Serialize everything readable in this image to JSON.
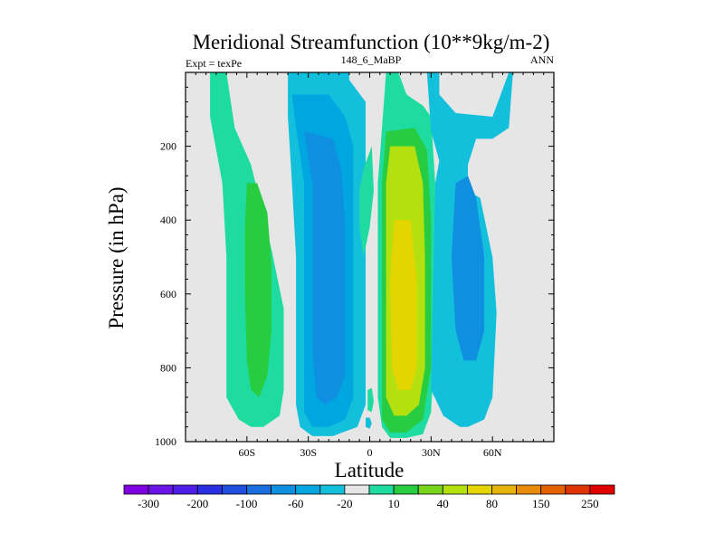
{
  "chart_data": {
    "type": "heatmap",
    "title": "Meridional Streamfunction (10**9kg/m-2)",
    "subtitle_left": "Expt = texPe",
    "subtitle_center": "148_6_MaBP",
    "subtitle_right": "ANN",
    "xlabel": "Latitude",
    "ylabel": "Pressure (in hPa)",
    "xlim": [
      -90,
      90
    ],
    "ylim": [
      0,
      1000
    ],
    "y_inverted": true,
    "x_ticks": [
      {
        "value": -60,
        "label": "60S"
      },
      {
        "value": -30,
        "label": "30S"
      },
      {
        "value": 0,
        "label": "0"
      },
      {
        "value": 30,
        "label": "30N"
      },
      {
        "value": 60,
        "label": "60N"
      }
    ],
    "y_ticks": [
      {
        "value": 200,
        "label": "200"
      },
      {
        "value": 400,
        "label": "400"
      },
      {
        "value": 600,
        "label": "600"
      },
      {
        "value": 800,
        "label": "800"
      },
      {
        "value": 1000,
        "label": "1000"
      }
    ],
    "colorbar": {
      "colors": [
        "#7f00e0",
        "#6a14e8",
        "#4b1ee6",
        "#2a2ee2",
        "#1f4fe0",
        "#1a6fe0",
        "#0f8fe0",
        "#00a6e0",
        "#12c0dc",
        "#e6e6e6",
        "#1edca0",
        "#28cc40",
        "#78d41c",
        "#b4e010",
        "#e4d400",
        "#e8b40c",
        "#e88c08",
        "#e46000",
        "#e03400",
        "#e00000"
      ],
      "labels": [
        {
          "boundary": 1,
          "text": "-300"
        },
        {
          "boundary": 3,
          "text": "-200"
        },
        {
          "boundary": 5,
          "text": "-100"
        },
        {
          "boundary": 7,
          "text": "-60"
        },
        {
          "boundary": 9,
          "text": "-20"
        },
        {
          "boundary": 11,
          "text": "10"
        },
        {
          "boundary": 13,
          "text": "40"
        },
        {
          "boundary": 15,
          "text": "80"
        },
        {
          "boundary": 17,
          "text": "150"
        },
        {
          "boundary": 19,
          "text": "250"
        }
      ]
    },
    "contour_regions": [
      {
        "name": "nh-outer-teal",
        "color": "#1edca0",
        "points": [
          [
            -78,
            0
          ],
          [
            -70,
            0
          ],
          [
            -66,
            150
          ],
          [
            -58,
            250
          ],
          [
            -48,
            480
          ],
          [
            -42,
            640
          ],
          [
            -42,
            860
          ],
          [
            -44,
            930
          ],
          [
            -52,
            960
          ],
          [
            -58,
            960
          ],
          [
            -64,
            940
          ],
          [
            -70,
            880
          ],
          [
            -70,
            500
          ],
          [
            -72,
            300
          ],
          [
            -78,
            120
          ]
        ]
      },
      {
        "name": "nh-core-green",
        "color": "#28cc40",
        "points": [
          [
            -60,
            300
          ],
          [
            -55,
            300
          ],
          [
            -50,
            380
          ],
          [
            -48,
            520
          ],
          [
            -48,
            700
          ],
          [
            -50,
            820
          ],
          [
            -54,
            880
          ],
          [
            -58,
            860
          ],
          [
            -60,
            780
          ],
          [
            -61,
            600
          ],
          [
            -61,
            420
          ]
        ]
      },
      {
        "name": "sh-outer-cyan",
        "color": "#12c0dc",
        "points": [
          [
            -40,
            0
          ],
          [
            -10,
            0
          ],
          [
            -10,
            20
          ],
          [
            -2,
            80
          ],
          [
            -2,
            900
          ],
          [
            -6,
            960
          ],
          [
            -18,
            985
          ],
          [
            -28,
            985
          ],
          [
            -34,
            960
          ],
          [
            -36,
            900
          ],
          [
            -36,
            500
          ],
          [
            -38,
            300
          ],
          [
            -40,
            120
          ]
        ]
      },
      {
        "name": "sh-mid-blue",
        "color": "#00a6e0",
        "points": [
          [
            -38,
            60
          ],
          [
            -20,
            60
          ],
          [
            -12,
            120
          ],
          [
            -8,
            200
          ],
          [
            -8,
            880
          ],
          [
            -12,
            940
          ],
          [
            -20,
            960
          ],
          [
            -28,
            960
          ],
          [
            -32,
            920
          ],
          [
            -32,
            300
          ],
          [
            -36,
            150
          ]
        ]
      },
      {
        "name": "sh-inner-blue",
        "color": "#0f8fe0",
        "points": [
          [
            -32,
            160
          ],
          [
            -18,
            180
          ],
          [
            -14,
            260
          ],
          [
            -12,
            400
          ],
          [
            -12,
            820
          ],
          [
            -16,
            880
          ],
          [
            -22,
            900
          ],
          [
            -26,
            880
          ],
          [
            -28,
            750
          ],
          [
            -28,
            300
          ]
        ]
      },
      {
        "name": "eq-teal-left",
        "color": "#1edca0",
        "points": [
          [
            -3,
            260
          ],
          [
            1,
            200
          ],
          [
            2,
            320
          ],
          [
            0,
            420
          ],
          [
            -3,
            500
          ],
          [
            -5,
            420
          ],
          [
            -5,
            320
          ]
        ]
      },
      {
        "name": "eq-teal-bottom",
        "color": "#1edca0",
        "points": [
          [
            -1,
            860
          ],
          [
            1,
            855
          ],
          [
            2,
            890
          ],
          [
            1,
            920
          ],
          [
            -1,
            915
          ]
        ]
      },
      {
        "name": "sh-bottom-cyan",
        "color": "#12c0dc",
        "points": [
          [
            -2,
            935
          ],
          [
            0,
            935
          ],
          [
            1,
            950
          ],
          [
            0,
            965
          ],
          [
            -2,
            960
          ]
        ]
      },
      {
        "name": "eq-outer-teal",
        "color": "#1edca0",
        "points": [
          [
            8,
            0
          ],
          [
            14,
            0
          ],
          [
            18,
            60
          ],
          [
            26,
            90
          ],
          [
            30,
            120
          ],
          [
            32,
            300
          ],
          [
            32,
            700
          ],
          [
            30,
            920
          ],
          [
            26,
            980
          ],
          [
            18,
            990
          ],
          [
            10,
            990
          ],
          [
            6,
            960
          ],
          [
            4,
            880
          ],
          [
            4,
            300
          ],
          [
            6,
            150
          ]
        ]
      },
      {
        "name": "eq-green",
        "color": "#28cc40",
        "points": [
          [
            8,
            160
          ],
          [
            22,
            150
          ],
          [
            28,
            210
          ],
          [
            30,
            400
          ],
          [
            30,
            800
          ],
          [
            26,
            940
          ],
          [
            18,
            975
          ],
          [
            10,
            975
          ],
          [
            6,
            940
          ],
          [
            6,
            300
          ]
        ]
      },
      {
        "name": "eq-yellow-green",
        "color": "#b4e010",
        "points": [
          [
            10,
            200
          ],
          [
            22,
            200
          ],
          [
            26,
            300
          ],
          [
            27,
            500
          ],
          [
            27,
            800
          ],
          [
            24,
            900
          ],
          [
            18,
            930
          ],
          [
            12,
            930
          ],
          [
            8,
            880
          ],
          [
            8,
            300
          ]
        ]
      },
      {
        "name": "eq-yellow",
        "color": "#e4d400",
        "points": [
          [
            12,
            400
          ],
          [
            20,
            400
          ],
          [
            23,
            560
          ],
          [
            23,
            800
          ],
          [
            20,
            860
          ],
          [
            14,
            860
          ],
          [
            11,
            800
          ],
          [
            10,
            560
          ]
        ]
      },
      {
        "name": "sh-right-cyan",
        "color": "#12c0dc",
        "points": [
          [
            28,
            0
          ],
          [
            34,
            0
          ],
          [
            34,
            60
          ],
          [
            42,
            110
          ],
          [
            60,
            120
          ],
          [
            68,
            0
          ],
          [
            70,
            0
          ],
          [
            68,
            150
          ],
          [
            60,
            180
          ],
          [
            52,
            180
          ],
          [
            48,
            250
          ],
          [
            48,
            320
          ],
          [
            54,
            340
          ],
          [
            60,
            500
          ],
          [
            62,
            650
          ],
          [
            60,
            880
          ],
          [
            56,
            940
          ],
          [
            48,
            960
          ],
          [
            44,
            960
          ],
          [
            36,
            930
          ],
          [
            30,
            860
          ],
          [
            32,
            300
          ],
          [
            34,
            240
          ],
          [
            30,
            160
          ]
        ]
      },
      {
        "name": "sh-right-blue",
        "color": "#0f8fe0",
        "points": [
          [
            42,
            300
          ],
          [
            48,
            280
          ],
          [
            52,
            340
          ],
          [
            56,
            500
          ],
          [
            56,
            700
          ],
          [
            52,
            780
          ],
          [
            46,
            780
          ],
          [
            42,
            700
          ],
          [
            40,
            500
          ]
        ]
      }
    ]
  }
}
